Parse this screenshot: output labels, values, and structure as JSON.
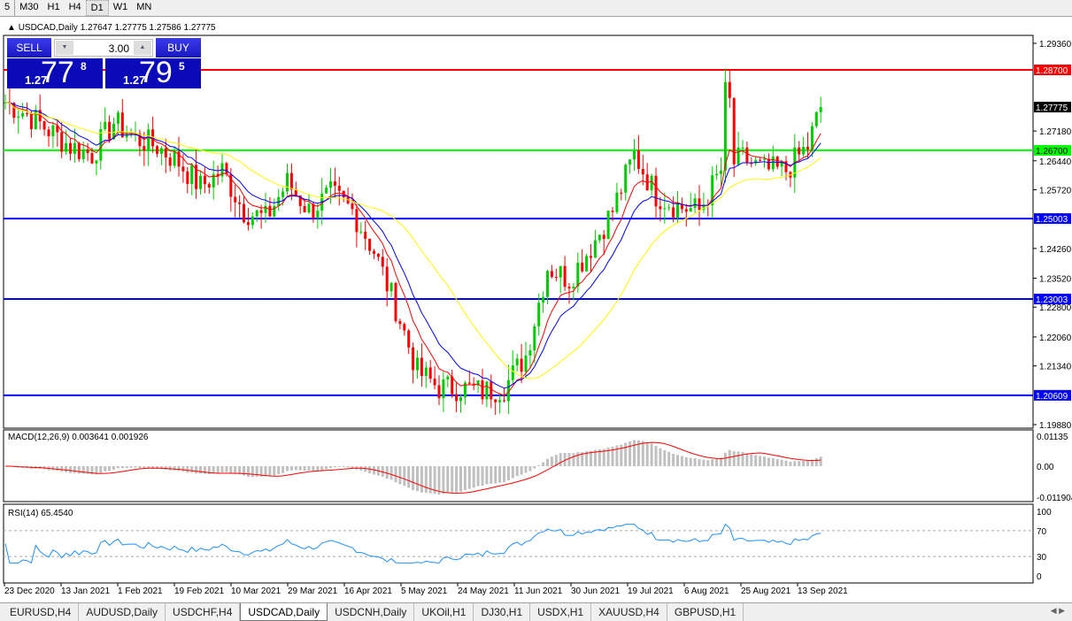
{
  "timeframes": [
    "5",
    "M30",
    "H1",
    "H4",
    "D1",
    "W1",
    "MN"
  ],
  "active_timeframe": "D1",
  "chart": {
    "header": "USDCAD,Daily  1.27647 1.27775 1.27586 1.27775",
    "symbol": "USDCAD",
    "period": "Daily"
  },
  "trade_panel": {
    "sell_label": "SELL",
    "buy_label": "BUY",
    "lot": "3.00",
    "sell_prefix": "1.27",
    "sell_big": "77",
    "sell_sup": "8",
    "buy_prefix": "1.27",
    "buy_big": "79",
    "buy_sup": "5"
  },
  "price_axis": {
    "ticks": [
      "1.29360",
      "1.27180",
      "1.26440",
      "1.25720",
      "1.24260",
      "1.23520",
      "1.22800",
      "1.22060",
      "1.21340",
      "1.19880"
    ],
    "range": [
      1.1988,
      1.2936
    ],
    "current": "1.27775"
  },
  "levels": [
    {
      "price": 1.287,
      "label": "1.28700",
      "color": "#ff0000"
    },
    {
      "price": 1.267,
      "label": "1.26700",
      "color": "#00ff00"
    },
    {
      "price": 1.25003,
      "label": "1.25003",
      "color": "#0000ff"
    },
    {
      "price": 1.23003,
      "label": "1.23003",
      "color": "#0000ff"
    },
    {
      "price": 1.20609,
      "label": "1.20609",
      "color": "#0000ff"
    }
  ],
  "colors": {
    "bull": "#00cc00",
    "bear": "#ff0000",
    "ma_fast": "#ff0000",
    "ma_mid": "#0000ff",
    "ma_slow": "#ffff00",
    "macd_hist": "#c0c0c0",
    "macd_signal": "#ff0000",
    "rsi": "#1e90ff"
  },
  "closes_every_5_bars": [
    1.279,
    1.276,
    1.272,
    1.268,
    1.266,
    1.274,
    1.27,
    1.268,
    1.264,
    1.258,
    1.262,
    1.252,
    1.25,
    1.259,
    1.252,
    1.256,
    1.252,
    1.242,
    1.228,
    1.212,
    1.208,
    1.208,
    1.207,
    1.208,
    1.216,
    1.238,
    1.235,
    1.243,
    1.252,
    1.266,
    1.256,
    1.253,
    1.252,
    1.262,
    1.265,
    1.262,
    1.262,
    1.268
  ],
  "last_close": 1.27775,
  "macd": {
    "label": "MACD(12,26,9) 0.003641 0.001926",
    "ticks": [
      "0.01135",
      "0.00",
      "-0.011904"
    ]
  },
  "rsi": {
    "label": "RSI(14) 65.4540",
    "ticks": [
      "100",
      "70",
      "30",
      "0"
    ],
    "levels": [
      70,
      30
    ]
  },
  "dates": [
    "23 Dec 2020",
    "13 Jan 2021",
    "1 Feb 2021",
    "19 Feb 2021",
    "10 Mar 2021",
    "29 Mar 2021",
    "16 Apr 2021",
    "5 May 2021",
    "24 May 2021",
    "11 Jun 2021",
    "30 Jun 2021",
    "19 Jul 2021",
    "6 Aug 2021",
    "25 Aug 2021",
    "13 Sep 2021"
  ],
  "tabs": [
    "EURUSD,H4",
    "AUDUSD,Daily",
    "USDCHF,H4",
    "USDCAD,Daily",
    "USDCNH,Daily",
    "UKOil,H1",
    "DJ30,H1",
    "USDX,H1",
    "XAUUSD,H4",
    "GBPUSD,H1"
  ],
  "active_tab": "USDCAD,Daily"
}
